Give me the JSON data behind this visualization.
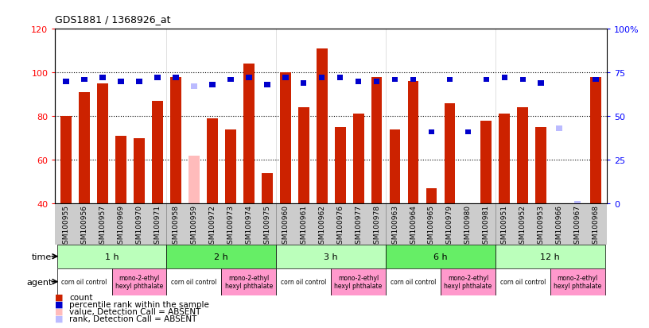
{
  "title": "GDS1881 / 1368926_at",
  "samples": [
    "GSM100955",
    "GSM100956",
    "GSM100957",
    "GSM100969",
    "GSM100970",
    "GSM100971",
    "GSM100958",
    "GSM100959",
    "GSM100972",
    "GSM100973",
    "GSM100974",
    "GSM100975",
    "GSM100960",
    "GSM100961",
    "GSM100962",
    "GSM100976",
    "GSM100977",
    "GSM100978",
    "GSM100963",
    "GSM100964",
    "GSM100965",
    "GSM100979",
    "GSM100980",
    "GSM100981",
    "GSM100951",
    "GSM100952",
    "GSM100953",
    "GSM100966",
    "GSM100967",
    "GSM100968"
  ],
  "count_values": [
    80,
    91,
    95,
    71,
    70,
    87,
    98,
    62,
    79,
    74,
    104,
    54,
    100,
    84,
    111,
    75,
    81,
    98,
    74,
    96,
    47,
    86,
    40,
    78,
    81,
    84,
    75,
    0,
    35,
    98
  ],
  "percentile_values": [
    70,
    71,
    72,
    70,
    70,
    72,
    72,
    67,
    68,
    71,
    72,
    68,
    72,
    69,
    72,
    72,
    70,
    70,
    71,
    71,
    41,
    71,
    41,
    71,
    72,
    71,
    69,
    43,
    0,
    71
  ],
  "absent_flags": [
    false,
    false,
    false,
    false,
    false,
    false,
    false,
    true,
    false,
    false,
    false,
    false,
    false,
    false,
    false,
    false,
    false,
    false,
    false,
    false,
    false,
    false,
    false,
    false,
    false,
    false,
    false,
    true,
    true,
    false
  ],
  "time_groups": [
    {
      "label": "1 h",
      "start": 0,
      "end": 5
    },
    {
      "label": "2 h",
      "start": 6,
      "end": 11
    },
    {
      "label": "3 h",
      "start": 12,
      "end": 17
    },
    {
      "label": "6 h",
      "start": 18,
      "end": 23
    },
    {
      "label": "12 h",
      "start": 24,
      "end": 29
    }
  ],
  "agent_groups": [
    {
      "label": "corn oil control",
      "start": 0,
      "end": 2,
      "color": "#ffffff"
    },
    {
      "label": "mono-2-ethyl\nhexyl phthalate",
      "start": 3,
      "end": 5,
      "color": "#ff99cc"
    },
    {
      "label": "corn oil control",
      "start": 6,
      "end": 8,
      "color": "#ffffff"
    },
    {
      "label": "mono-2-ethyl\nhexyl phthalate",
      "start": 9,
      "end": 11,
      "color": "#ff99cc"
    },
    {
      "label": "corn oil control",
      "start": 12,
      "end": 14,
      "color": "#ffffff"
    },
    {
      "label": "mono-2-ethyl\nhexyl phthalate",
      "start": 15,
      "end": 17,
      "color": "#ff99cc"
    },
    {
      "label": "corn oil control",
      "start": 18,
      "end": 20,
      "color": "#ffffff"
    },
    {
      "label": "mono-2-ethyl\nhexyl phthalate",
      "start": 21,
      "end": 23,
      "color": "#ff99cc"
    },
    {
      "label": "corn oil control",
      "start": 24,
      "end": 26,
      "color": "#ffffff"
    },
    {
      "label": "mono-2-ethyl\nhexyl phthalate",
      "start": 27,
      "end": 29,
      "color": "#ff99cc"
    }
  ],
  "ylim_left": [
    40,
    120
  ],
  "ylim_right": [
    0,
    100
  ],
  "yticks_left": [
    40,
    60,
    80,
    100,
    120
  ],
  "yticks_right": [
    0,
    25,
    50,
    75,
    100
  ],
  "bar_color": "#cc2200",
  "percentile_color": "#0000cc",
  "absent_bar_color": "#ffbbbb",
  "absent_rank_color": "#bbbbff",
  "time_row_color_light": "#bbffbb",
  "time_row_color_dark": "#66ee66",
  "agent_corn_color": "#ffffff",
  "agent_mono_color": "#ff99cc",
  "xtick_bg_color": "#cccccc",
  "bar_width": 0.6
}
